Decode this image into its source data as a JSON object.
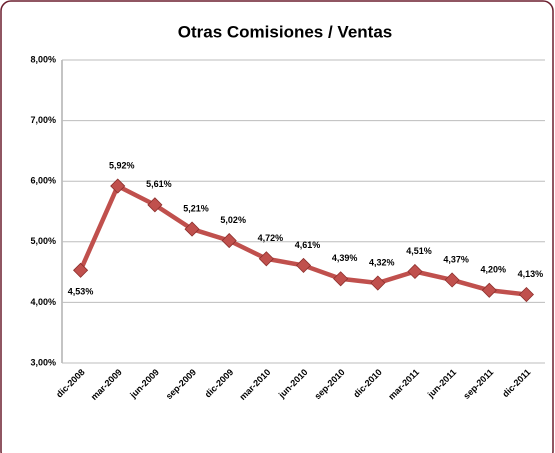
{
  "chart_data": {
    "type": "line",
    "title": "Otras Comisiones / Ventas",
    "categories": [
      "dic-2008",
      "mar-2009",
      "jun-2009",
      "sep-2009",
      "dic-2009",
      "mar-2010",
      "jun-2010",
      "sep-2010",
      "dic-2010",
      "mar-2011",
      "jun-2011",
      "sep-2011",
      "dic-2011"
    ],
    "series": [
      {
        "name": "Otras Comisiones / Ventas",
        "color": "#c0504d",
        "values": [
          4.53,
          5.92,
          5.61,
          5.21,
          5.02,
          4.72,
          4.61,
          4.39,
          4.32,
          4.51,
          4.37,
          4.2,
          4.13
        ],
        "value_labels": [
          "4,53%",
          "5,92%",
          "5,61%",
          "5,21%",
          "5,02%",
          "4,72%",
          "4,61%",
          "4,39%",
          "4,32%",
          "4,51%",
          "4,37%",
          "4,20%",
          "4,13%"
        ]
      }
    ],
    "ylim": [
      3,
      8
    ],
    "yticks": [
      {
        "value": 3,
        "label": "3,00%"
      },
      {
        "value": 4,
        "label": "4,00%"
      },
      {
        "value": 5,
        "label": "5,00%"
      },
      {
        "value": 6,
        "label": "6,00%"
      },
      {
        "value": 7,
        "label": "7,00%"
      },
      {
        "value": 8,
        "label": "8,00%"
      }
    ],
    "grid": true
  }
}
